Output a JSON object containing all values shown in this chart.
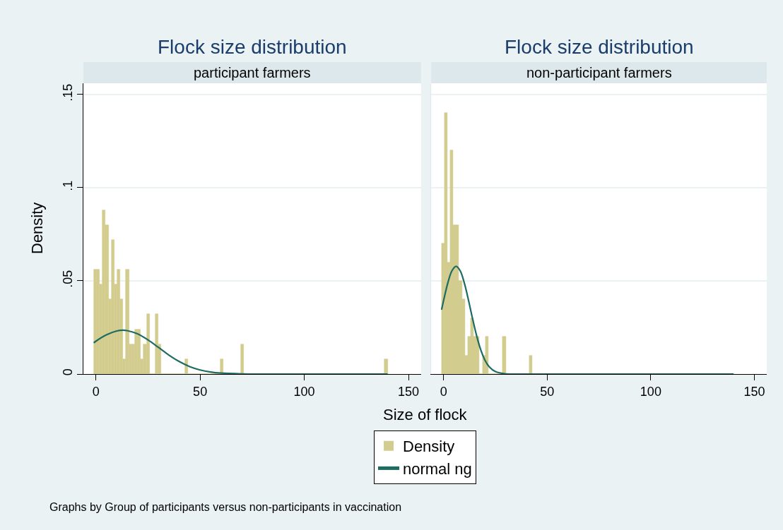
{
  "chart_data": [
    {
      "type": "histogram",
      "title": "Flock size distribution",
      "subtitle": "participant farmers",
      "xlabel": "Size of flock",
      "ylabel": "Density",
      "bins": [
        -1,
        0.41,
        1.82,
        3.23,
        4.64,
        6.05,
        7.46,
        8.87,
        10.28,
        11.69,
        13.1,
        14.51,
        15.92,
        17.33,
        18.74,
        20.15,
        21.56,
        22.97,
        24.38,
        25.79,
        27.2,
        28.61,
        30.02,
        31.43,
        32.84,
        34.25,
        35.66,
        37.07,
        38.48,
        39.89,
        41.3,
        42.71,
        44.12,
        45.53,
        46.94,
        48.35,
        49.76,
        51.17,
        52.58,
        53.99,
        55.4,
        56.81,
        58.22,
        59.63,
        61.04,
        62.45,
        63.86,
        65.27,
        66.68,
        68.09,
        69.5,
        70.91,
        72.32,
        73.73,
        75.14,
        76.55,
        77.96,
        79.37,
        80.78,
        82.19,
        83.6,
        85.01,
        86.42,
        87.83,
        89.24,
        90.65,
        92.06,
        93.47,
        94.88,
        96.29,
        97.7,
        99.11,
        100.52,
        101.93,
        103.34,
        104.75,
        106.16,
        107.57,
        108.98,
        110.39,
        111.8,
        113.21,
        114.62,
        116.03,
        117.44,
        118.85,
        120.26,
        121.67,
        123.08,
        124.49,
        125.9,
        127.31,
        128.72,
        130.13,
        131.54,
        132.95,
        134.36,
        135.77,
        137.18,
        138.59,
        140
      ],
      "series": [
        {
          "name": "Density",
          "color": "#d3cc8f",
          "values": [
            0.056,
            0.056,
            0.048,
            0.088,
            0.08,
            0.04,
            0.072,
            0.048,
            0.056,
            0.04,
            0.008,
            0.056,
            0.016,
            0.016,
            0.024,
            0.024,
            0.008,
            0.016,
            0.032,
            0,
            0,
            0.032,
            0.016,
            0,
            0,
            0,
            0,
            0,
            0,
            0,
            0,
            0.008,
            0,
            0,
            0,
            0,
            0,
            0,
            0,
            0,
            0,
            0,
            0,
            0.008,
            0,
            0,
            0,
            0,
            0,
            0,
            0.016,
            0,
            0,
            0,
            0,
            0,
            0,
            0,
            0,
            0,
            0,
            0,
            0,
            0,
            0,
            0,
            0,
            0,
            0,
            0,
            0,
            0,
            0,
            0,
            0,
            0,
            0,
            0,
            0,
            0,
            0,
            0,
            0,
            0,
            0,
            0,
            0,
            0,
            0,
            0,
            0,
            0,
            0,
            0,
            0,
            0,
            0,
            0,
            0,
            0.008
          ]
        },
        {
          "name": "normal ng",
          "type": "line",
          "color": "#1e6b62",
          "x": [
            -1,
            0,
            5,
            10,
            13,
            15,
            20,
            25,
            30,
            35,
            40,
            45,
            50,
            55,
            60,
            70,
            80,
            100,
            120,
            140
          ],
          "values": [
            0.0167,
            0.0176,
            0.021,
            0.0231,
            0.0235,
            0.0233,
            0.0216,
            0.0183,
            0.0143,
            0.0102,
            0.0067,
            0.004,
            0.0022,
            0.0011,
            0.0005,
            0.0001,
            0,
            0,
            0,
            0
          ]
        }
      ],
      "xlim": [
        -6,
        156
      ],
      "xticks": [
        0,
        50,
        100,
        150
      ],
      "ylim": [
        0,
        0.156
      ],
      "yticks": [
        0,
        {
          "value": 0.05,
          "label": ".05"
        },
        {
          "value": 0.1,
          "label": ".1"
        },
        {
          "value": 0.15,
          "label": ".15"
        }
      ],
      "grid": "y",
      "legend": "bottom",
      "annotations": [
        "Graphs by Group of participants versus non-participants in vaccination"
      ]
    },
    {
      "type": "histogram",
      "title": "Flock size distribution",
      "subtitle": "non-participant farmers",
      "bins": [
        -1,
        0.41,
        1.82,
        3.23,
        4.64,
        6.05,
        7.46,
        8.87,
        10.28,
        11.69,
        13.1,
        14.51,
        15.92,
        17.33,
        18.74,
        20.15,
        21.56,
        22.97,
        24.38,
        25.79,
        27.2,
        28.61,
        30.02,
        31.43,
        32.84,
        34.25,
        35.66,
        37.07,
        38.48,
        39.89,
        41.3,
        42.71,
        44.12,
        45.53,
        46.94,
        48.35,
        49.76,
        51.17,
        52.58,
        53.99,
        55.4,
        56.81,
        58.22,
        59.63,
        61.04,
        62.45,
        63.86,
        65.27,
        66.68,
        68.09,
        69.5,
        70.91,
        72.32,
        73.73,
        75.14,
        76.55,
        77.96,
        79.37,
        80.78,
        82.19,
        83.6,
        85.01,
        86.42,
        87.83,
        89.24,
        90.65,
        92.06,
        93.47,
        94.88,
        96.29,
        97.7,
        99.11,
        100.52,
        101.93,
        103.34,
        104.75,
        106.16,
        107.57,
        108.98,
        110.39,
        111.8,
        113.21,
        114.62,
        116.03,
        117.44,
        118.85,
        120.26,
        121.67,
        123.08,
        124.49,
        125.9,
        127.31,
        128.72,
        130.13,
        131.54,
        132.95,
        134.36,
        135.77,
        137.18,
        138.59,
        140
      ],
      "series": [
        {
          "color": "#d3cc8f",
          "values": [
            0.07,
            0.14,
            0.06,
            0.12,
            0.08,
            0.08,
            0.05,
            0.04,
            0.01,
            0.02,
            0.03,
            0.02,
            0.02,
            0,
            0.01,
            0.02,
            0,
            0,
            0,
            0,
            0,
            0.02,
            0,
            0,
            0,
            0,
            0,
            0,
            0,
            0,
            0.01,
            0,
            0,
            0,
            0,
            0,
            0,
            0,
            0,
            0,
            0,
            0,
            0,
            0,
            0,
            0,
            0,
            0,
            0,
            0,
            0,
            0,
            0,
            0,
            0,
            0,
            0,
            0,
            0,
            0,
            0,
            0,
            0,
            0,
            0,
            0,
            0,
            0,
            0,
            0,
            0,
            0,
            0,
            0,
            0,
            0,
            0,
            0,
            0,
            0,
            0,
            0,
            0,
            0,
            0,
            0,
            0,
            0,
            0,
            0,
            0,
            0,
            0,
            0,
            0,
            0,
            0,
            0,
            0,
            0
          ]
        },
        {
          "type": "line",
          "color": "#1e6b62",
          "x": [
            -1,
            0,
            2,
            4,
            6,
            8,
            10,
            12,
            14,
            16,
            18,
            20,
            22,
            25,
            30,
            40,
            140
          ],
          "values": [
            0.0345,
            0.0396,
            0.0488,
            0.0554,
            0.0578,
            0.0554,
            0.0488,
            0.0396,
            0.0295,
            0.0202,
            0.0127,
            0.0073,
            0.0039,
            0.0013,
            0.0001,
            0,
            0
          ]
        }
      ],
      "xlim": [
        -6,
        156
      ],
      "xticks": [
        0,
        50,
        100,
        150
      ],
      "ylim": [
        0,
        0.156
      ],
      "yticks": [
        0,
        0.05,
        0.1,
        0.15
      ],
      "grid": "y",
      "tick_labels": "x"
    }
  ]
}
